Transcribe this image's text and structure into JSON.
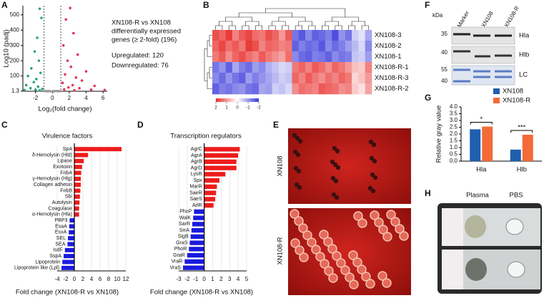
{
  "chart_data": [
    {
      "type": "scatter",
      "panel": "A",
      "ylabel": "Log10 (padj)",
      "xlabel": "Log₂(fold change)",
      "xlim": [
        -3.5,
        6.5
      ],
      "xticks": [
        -2,
        0,
        2,
        4,
        6
      ],
      "ylim": [
        0,
        560
      ],
      "yticks": [
        1.3,
        100,
        200,
        300,
        400,
        500
      ],
      "threshold_x": [
        -1,
        1
      ],
      "threshold_y": 1.3,
      "annotations": [
        "XN108-R vs XN108",
        "differentially expressed",
        "genes (≥ 2-fold)  (196)",
        "Upregulated: 120",
        "Downregulated: 76"
      ],
      "series": [
        {
          "color": "#2aa37a",
          "x": [
            -1.5,
            -1.3,
            -1.8,
            -2.1,
            -1.6,
            -2.5,
            -1.4,
            -2.9,
            -1.9,
            -2.2,
            -3.1,
            -1.7,
            -2.6,
            -1.2,
            -2.0,
            -3.3,
            -1.5
          ],
          "values": [
            540,
            480,
            350,
            260,
            200,
            150,
            120,
            100,
            80,
            60,
            40,
            30,
            20,
            15,
            10,
            8,
            5
          ]
        },
        {
          "color": "#e8335a",
          "x": [
            2.1,
            1.6,
            2.5,
            1.3,
            3.0,
            1.8,
            2.2,
            4.0,
            1.5,
            2.8,
            3.5,
            1.2,
            2.4,
            5.0,
            1.9,
            3.2,
            1.4,
            4.6,
            2.6,
            6.2
          ],
          "values": [
            545,
            470,
            380,
            300,
            240,
            200,
            160,
            130,
            110,
            90,
            70,
            55,
            40,
            35,
            25,
            20,
            12,
            10,
            6,
            8
          ]
        },
        {
          "color": "#9a9a9a",
          "x": [
            -0.8,
            -0.5,
            0.2,
            0.6,
            0.9,
            -0.3,
            0.4,
            -0.9,
            0.1,
            0.7,
            -0.6
          ],
          "values": [
            1.2,
            0.8,
            0.5,
            1.0,
            0.3,
            0.1,
            0.9,
            0.6,
            0.2,
            0.7,
            0.4
          ]
        }
      ]
    },
    {
      "type": "heatmap",
      "panel": "B",
      "rows": [
        "XN108-3",
        "XN108-2",
        "XN108-1",
        "XN108-R-1",
        "XN108-R-3",
        "XN108-R-2"
      ],
      "values": [
        [
          1.7,
          1.5,
          1.9,
          1.2,
          1.6,
          1.8,
          1.4,
          1.3,
          1.7,
          1.5,
          1.0,
          1.6,
          -1.4,
          -1.7,
          -1.2,
          -1.6,
          -1.5,
          -1.3,
          -1.8,
          -1.1,
          -1.4,
          -0.5,
          -0.3,
          -0.9
        ],
        [
          1.5,
          1.8,
          1.4,
          1.6,
          1.3,
          1.9,
          1.7,
          1.2,
          1.5,
          1.4,
          1.2,
          1.3,
          -1.6,
          -1.3,
          -1.5,
          -1.4,
          -1.7,
          -1.2,
          -1.5,
          -1.3,
          -1.0,
          -0.7,
          -0.4,
          -1.2
        ],
        [
          1.3,
          1.6,
          1.1,
          1.5,
          1.7,
          1.4,
          1.2,
          1.6,
          1.3,
          1.1,
          0.9,
          1.4,
          -1.2,
          -1.5,
          -1.6,
          -1.3,
          -1.4,
          -1.6,
          -1.2,
          -1.4,
          -1.3,
          -0.6,
          -0.5,
          -1.0
        ],
        [
          -1.4,
          -1.1,
          -1.6,
          -0.9,
          -1.3,
          -1.5,
          -1.0,
          -1.2,
          -0.8,
          -0.6,
          -0.4,
          -0.5,
          1.3,
          1.5,
          1.2,
          1.6,
          1.4,
          1.1,
          1.5,
          1.3,
          1.0,
          0.6,
          0.5,
          1.2
        ],
        [
          -1.2,
          -1.5,
          -1.1,
          -1.4,
          -1.6,
          -1.0,
          -1.3,
          -1.1,
          -0.9,
          -0.7,
          -0.5,
          -0.6,
          1.5,
          1.2,
          1.6,
          1.3,
          1.1,
          1.4,
          1.2,
          1.5,
          1.3,
          0.4,
          0.6,
          1.0
        ],
        [
          -1.6,
          -1.3,
          -1.4,
          -1.2,
          -1.1,
          -1.4,
          -1.5,
          -0.9,
          -1.0,
          -0.5,
          -0.6,
          -0.4,
          1.1,
          1.4,
          1.3,
          1.2,
          1.6,
          1.5,
          1.4,
          1.1,
          1.2,
          0.5,
          0.3,
          0.9
        ]
      ],
      "clim": [
        -2,
        2
      ],
      "colorbar_ticks": [
        2,
        1,
        0,
        -1,
        -2
      ],
      "high_color": "#e8312e",
      "low_color": "#3a3adb"
    },
    {
      "type": "hbar",
      "panel": "C",
      "title": "Virulence factors",
      "categories": [
        "SpA",
        "δ-Hemolysin (Hld)",
        "Lipase",
        "Exotoxin",
        "FnbA",
        "γ-Hemolysin (Hlg)",
        "Collagen adhesin",
        "FnbB",
        "Sbi",
        "Autolysin",
        "Coagulase",
        "α-Hemolysin (Hla)",
        "PBP3",
        "EsaA",
        "EsxA",
        "SEL",
        "SEA",
        "IsdF",
        "SspA",
        "Lipoprotein",
        "Lipoprotein like (Lpl)"
      ],
      "values": [
        11,
        3.2,
        2.2,
        1.8,
        1.6,
        1.5,
        1.5,
        1.4,
        1.3,
        1.2,
        1.1,
        1.1,
        -1.1,
        -1.2,
        -1.3,
        -1.5,
        -1.6,
        -2.2,
        -2.5,
        -2.8,
        -3
      ],
      "xlim": [
        -4,
        12
      ],
      "xticks": [
        -4,
        -2,
        0,
        2,
        4,
        6,
        8,
        10,
        12
      ],
      "xlabel": "Fold change (XN108-R vs XN108)",
      "positive_color": "#ee1c1c",
      "negative_color": "#1a1adf",
      "grid": true
    },
    {
      "type": "hbar",
      "panel": "D",
      "title": "Transcription regulators",
      "categories": [
        "AgrC",
        "AgrA",
        "AgrB",
        "AgrD",
        "LysR",
        "Spx",
        "MarR",
        "SaeR",
        "SaeS",
        "ArlR",
        "PhoP",
        "WalK",
        "SarR",
        "SrrA",
        "SigB",
        "GraS",
        "PhoR",
        "GraR",
        "VraR",
        "VraS"
      ],
      "values": [
        4.2,
        4,
        3.8,
        3.8,
        2.5,
        1.8,
        1.5,
        1.4,
        1.3,
        1.1,
        -1.2,
        -1.3,
        -1.4,
        -1.5,
        -1.6,
        -1.7,
        -1.8,
        -2,
        -2.3,
        -2.5
      ],
      "xlim": [
        -3,
        5
      ],
      "xticks": [
        -3,
        -2,
        -1,
        0,
        1,
        2,
        3,
        4,
        5
      ],
      "xlabel": "Fold change (XN108-R vs XN108)",
      "positive_color": "#ee1c1c",
      "negative_color": "#1a1adf",
      "grid": true
    },
    {
      "type": "bar",
      "panel": "G",
      "ylabel": "Relative gray value",
      "categories": [
        "Hla",
        "Hlb"
      ],
      "series": [
        {
          "name": "XN108",
          "color": "#1f5fad",
          "values": [
            2.35,
            0.85
          ]
        },
        {
          "name": "XN108-R",
          "color": "#f26b38",
          "values": [
            2.55,
            1.95
          ]
        }
      ],
      "ylim": [
        0,
        4
      ],
      "yticks": [
        {
          "value": 0,
          "label": "0.0"
        },
        {
          "value": 0.5,
          "label": "0.5"
        },
        {
          "value": 1,
          "label": "1.0"
        },
        {
          "value": 1.5,
          "label": "1.5"
        },
        {
          "value": 2,
          "label": "2.0"
        },
        {
          "value": 2.5,
          "label": "2.5"
        },
        {
          "value": 3,
          "label": "3.0"
        },
        {
          "value": 3.5,
          "label": "3.5"
        },
        {
          "value": 4,
          "label": "4.0"
        }
      ],
      "significance": [
        "*",
        "***"
      ]
    }
  ],
  "panel_E": {
    "label": "E",
    "rows": [
      "XN108",
      "XN108-R"
    ]
  },
  "panel_F": {
    "label": "F",
    "unit": "kDa",
    "lanes": [
      "Marker",
      "XN108",
      "XN108-R"
    ],
    "bands": [
      "Hla",
      "Hlb",
      "LC"
    ],
    "marker_sizes": [
      "35",
      "40",
      "55",
      "40"
    ]
  },
  "panel_H": {
    "label": "H",
    "columns": [
      "Plasma",
      "PBS"
    ]
  }
}
